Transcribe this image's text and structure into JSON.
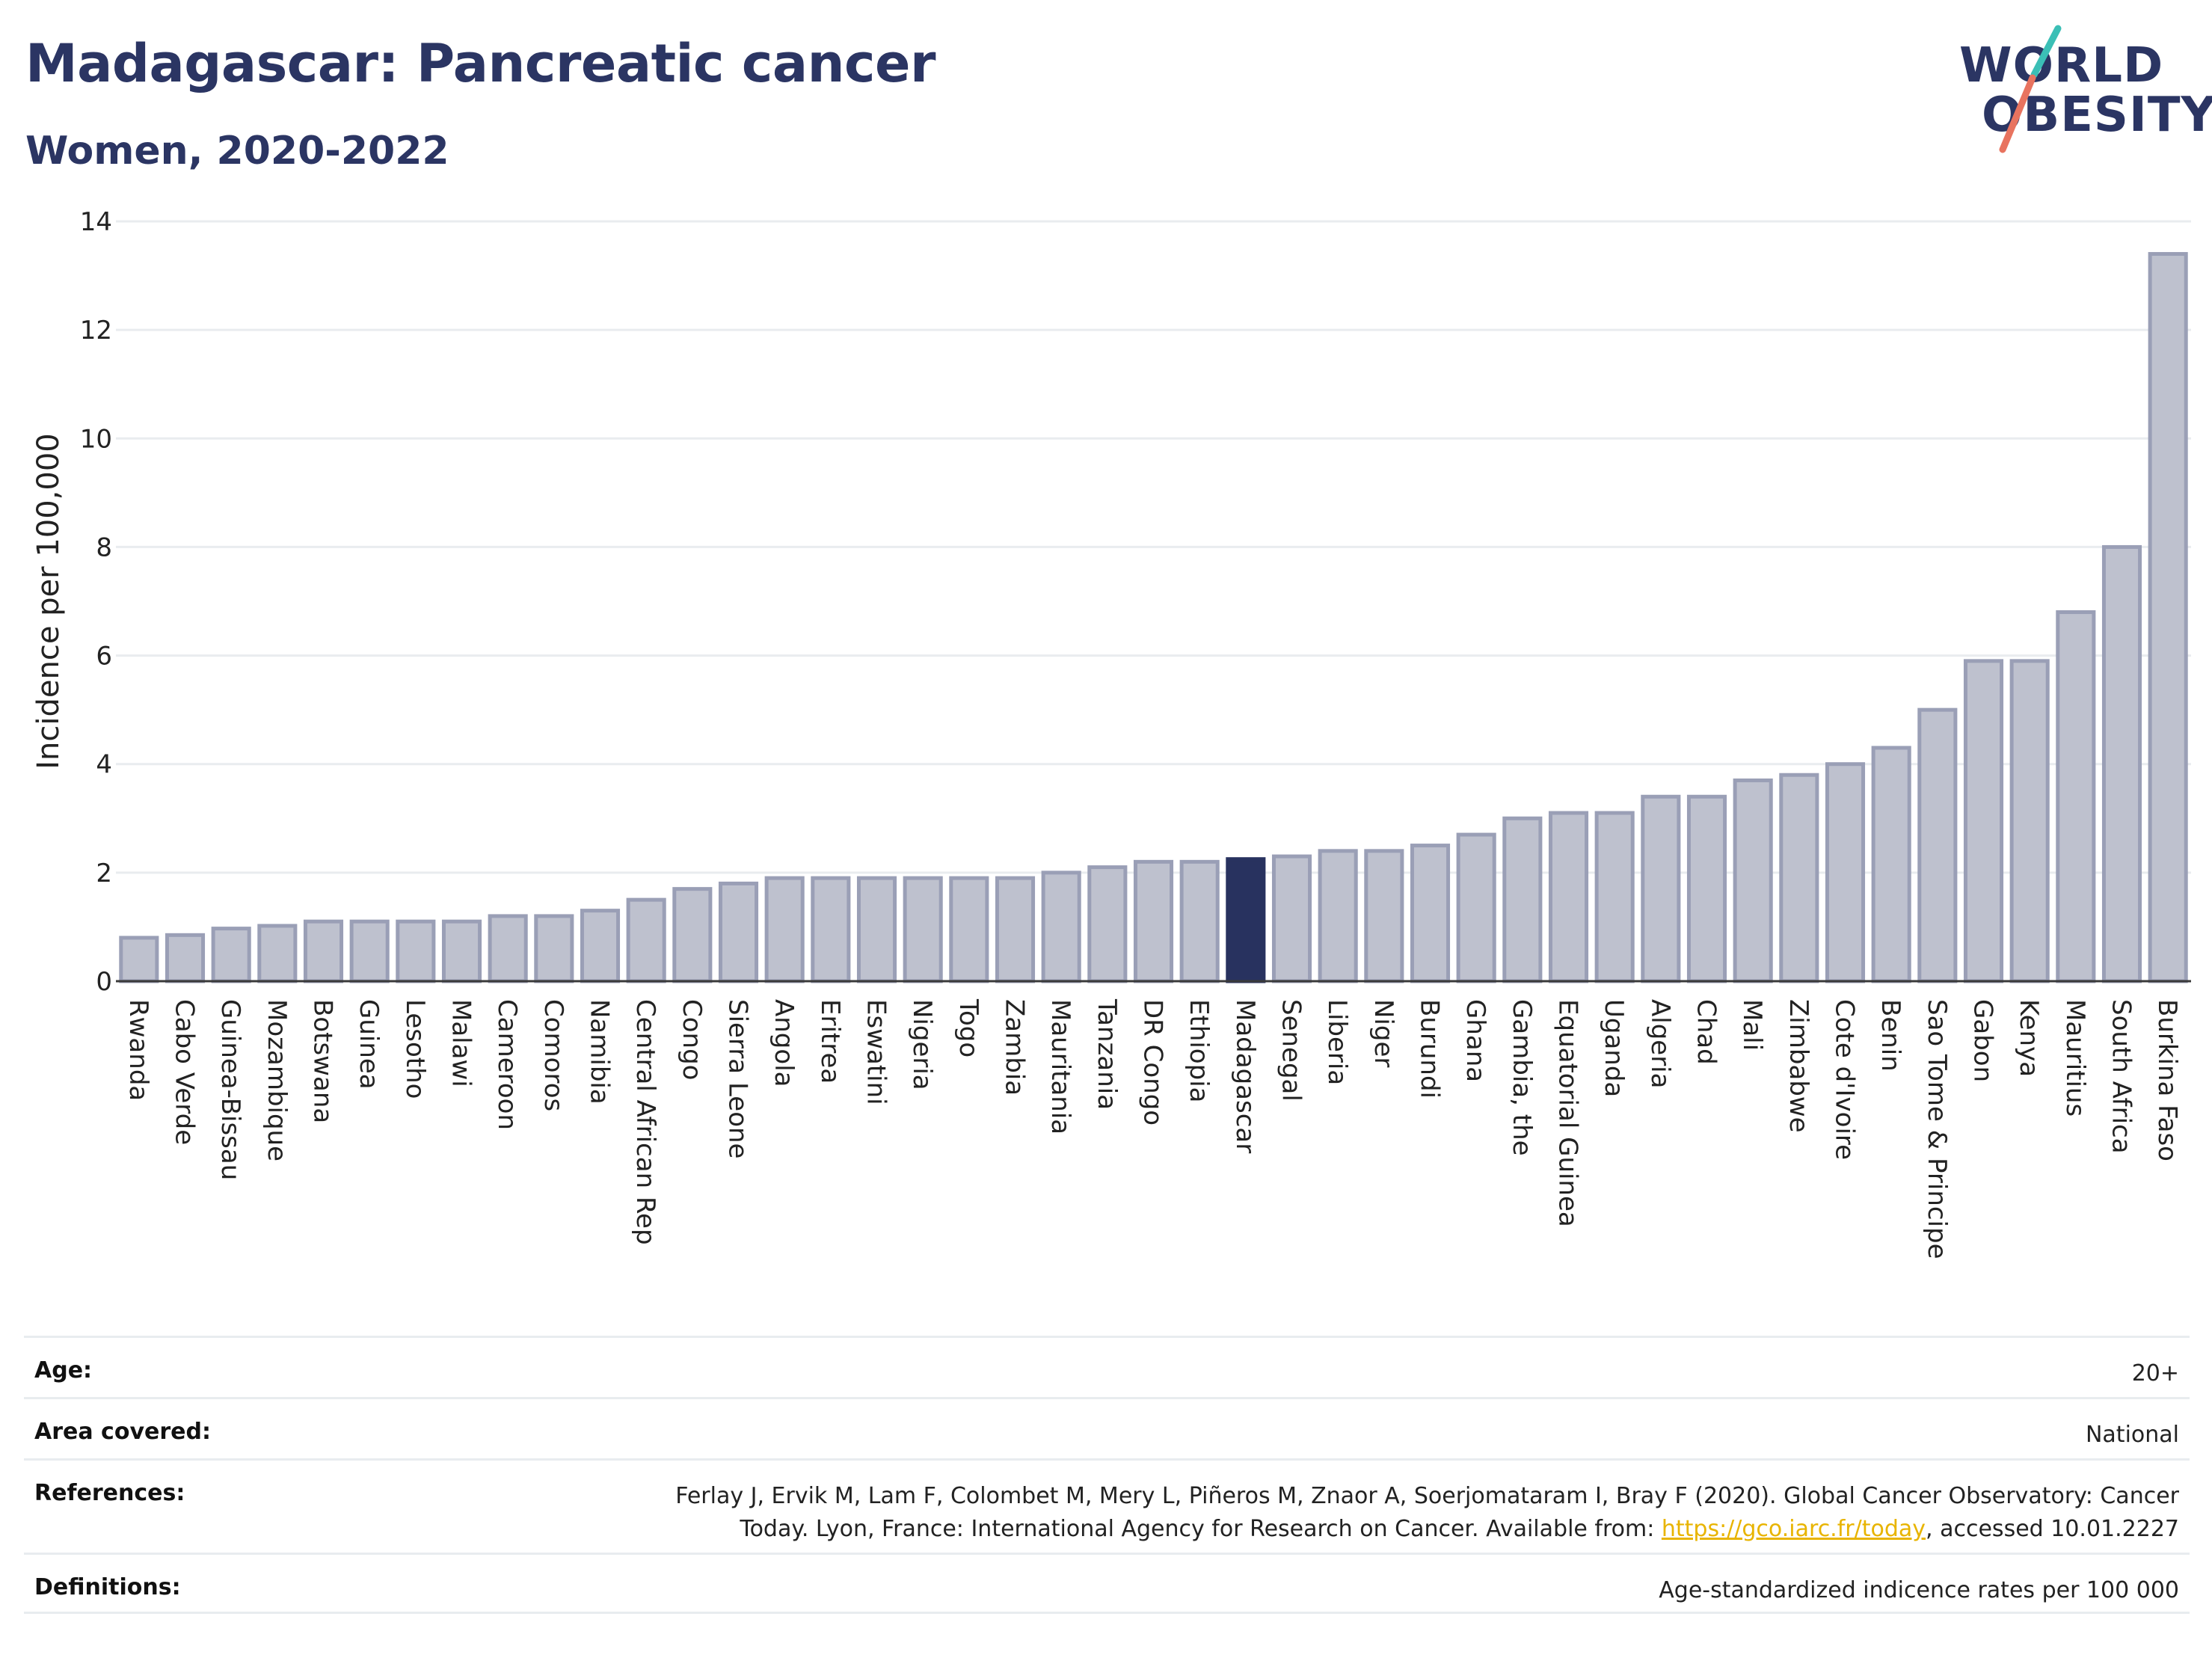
{
  "title": "Madagascar: Pancreatic cancer",
  "subtitle": "Women, 2020-2022",
  "logo": {
    "line1": "WORLD",
    "line2": "OBESITY",
    "accent_colors": [
      "#3bbfb6",
      "#e8735f"
    ]
  },
  "colors": {
    "bar": "#bec1ce",
    "bar_stroke": "#9a9fb6",
    "highlight": "#28325f",
    "grid": "#e9ecef",
    "axis": "#3a3a3a"
  },
  "chart_data": {
    "type": "bar",
    "categories": [
      "Rwanda",
      "Cabo Verde",
      "Guinea-Bissau",
      "Mozambique",
      "Botswana",
      "Guinea",
      "Lesotho",
      "Malawi",
      "Cameroon",
      "Comoros",
      "Namibia",
      "Central African Rep",
      "Congo",
      "Sierra Leone",
      "Angola",
      "Eritrea",
      "Eswatini",
      "Nigeria",
      "Togo",
      "Zambia",
      "Mauritania",
      "Tanzania",
      "DR Congo",
      "Ethiopia",
      "Madagascar",
      "Senegal",
      "Liberia",
      "Niger",
      "Burundi",
      "Ghana",
      "Gambia, the",
      "Equatorial Guinea",
      "Uganda",
      "Algeria",
      "Chad",
      "Mali",
      "Zimbabwe",
      "Cote d'Ivoire",
      "Benin",
      "Sao Tome & Principe",
      "Gabon",
      "Kenya",
      "Mauritius",
      "South Africa",
      "Burkina Faso"
    ],
    "values": [
      0.8,
      0.85,
      0.97,
      1.02,
      1.1,
      1.1,
      1.1,
      1.1,
      1.2,
      1.2,
      1.3,
      1.5,
      1.7,
      1.8,
      1.9,
      1.9,
      1.9,
      1.9,
      1.9,
      1.9,
      2.0,
      2.1,
      2.2,
      2.2,
      2.25,
      2.3,
      2.4,
      2.4,
      2.5,
      2.7,
      3.0,
      3.1,
      3.1,
      3.4,
      3.4,
      3.7,
      3.8,
      4.0,
      4.3,
      5.0,
      5.9,
      5.9,
      6.8,
      8.0,
      13.4
    ],
    "highlight": "Madagascar",
    "ylabel": "Incidence per 100,000",
    "ylim": [
      0,
      14
    ],
    "yticks": [
      0,
      2,
      4,
      6,
      8,
      10,
      12,
      14
    ],
    "grid": true
  },
  "meta": {
    "age_label": "Age:",
    "age_value": "20+",
    "area_label": "Area covered:",
    "area_value": "National",
    "ref_label": "References:",
    "ref_text_1": "Ferlay J, Ervik M, Lam F, Colombet M, Mery L, Piñeros M, Znaor A, Soerjomataram I, Bray F (2020). Global Cancer Observatory: Cancer",
    "ref_text_2": "Today. Lyon, France: International Agency for Research on Cancer. Available from: ",
    "ref_link": "https://gco.iarc.fr/today",
    "ref_text_3": ", accessed 10.01.2227",
    "def_label": "Definitions:",
    "def_value": "Age-standardized indicence rates per 100 000"
  }
}
